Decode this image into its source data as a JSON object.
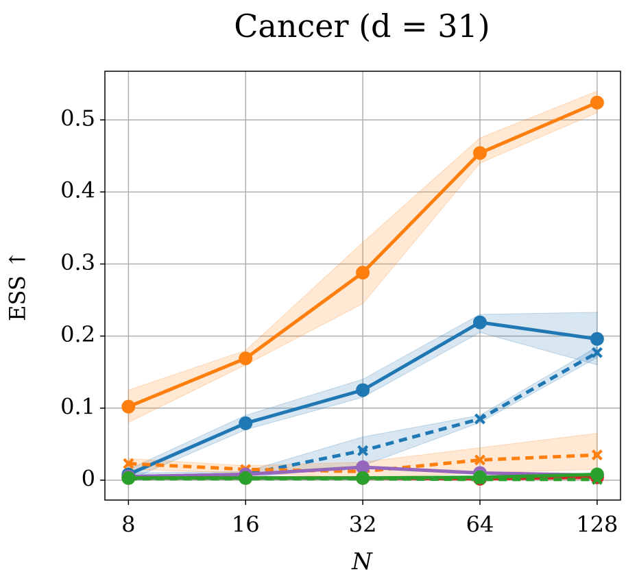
{
  "chart_data": {
    "type": "line",
    "title": "Cancer (d = 31)",
    "xlabel": "N",
    "ylabel": "ESS ↑",
    "x": [
      8,
      16,
      32,
      64,
      128
    ],
    "xscale": "log",
    "xlim": [
      6.96,
      147.0
    ],
    "xticks": [
      8,
      16,
      32,
      64,
      128
    ],
    "ylim": [
      -0.0276,
      0.5675
    ],
    "yticks": [
      0,
      0.1,
      0.2,
      0.3,
      0.4,
      0.5
    ],
    "grid": true,
    "series": [
      {
        "color": "#ff7f0e",
        "marker": "o",
        "dashed": false,
        "values": [
          0.102,
          0.169,
          0.288,
          0.454,
          0.524
        ],
        "lower": [
          0.08,
          0.16,
          0.245,
          0.44,
          0.51
        ],
        "upper": [
          0.125,
          0.18,
          0.33,
          0.475,
          0.54
        ]
      },
      {
        "color": "#1f77b4",
        "marker": "o",
        "dashed": false,
        "values": [
          0.008,
          0.079,
          0.125,
          0.219,
          0.196
        ],
        "lower": [
          0.0,
          0.07,
          0.115,
          0.205,
          0.16
        ],
        "upper": [
          0.015,
          0.09,
          0.14,
          0.23,
          0.233
        ]
      },
      {
        "color": "#1f77b4",
        "marker": "x",
        "dashed": true,
        "values": [
          0.005,
          0.008,
          0.041,
          0.085,
          0.177
        ],
        "lower": [
          0.0,
          0.003,
          0.02,
          0.08,
          0.17
        ],
        "upper": [
          0.01,
          0.012,
          0.06,
          0.09,
          0.185
        ]
      },
      {
        "color": "#ff7f0e",
        "marker": "x",
        "dashed": true,
        "values": [
          0.023,
          0.015,
          0.012,
          0.028,
          0.035
        ],
        "lower": [
          0.015,
          0.01,
          0.003,
          0.01,
          0.015
        ],
        "upper": [
          0.03,
          0.02,
          0.025,
          0.045,
          0.065
        ]
      },
      {
        "color": "#9467bd",
        "marker": "o",
        "dashed": false,
        "values": [
          0.005,
          0.008,
          0.018,
          0.01,
          0.007
        ]
      },
      {
        "color": "#d62728",
        "marker": "o",
        "dashed": false,
        "values": [
          0.003,
          0.003,
          0.003,
          0.002,
          0.004
        ]
      },
      {
        "color": "#2ca02c",
        "marker": "o",
        "dashed": false,
        "values": [
          0.003,
          0.003,
          0.003,
          0.004,
          0.008
        ]
      },
      {
        "color": "#2ca02c",
        "marker": "x",
        "dashed": true,
        "values": [
          0.002,
          0.002,
          0.002,
          0.001,
          0.001
        ]
      }
    ]
  }
}
